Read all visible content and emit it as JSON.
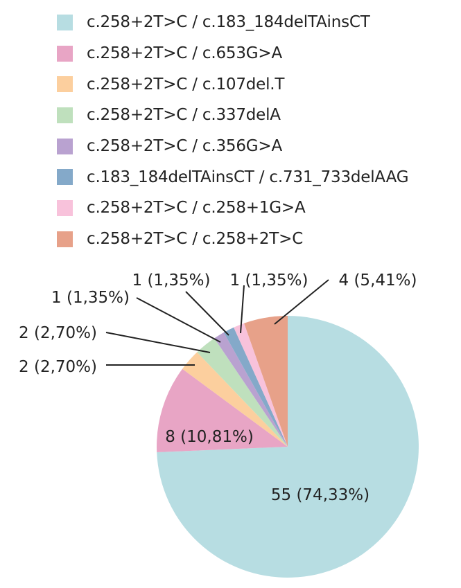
{
  "chart_data": {
    "type": "pie",
    "start_angle_deg": 0,
    "direction": "clockwise",
    "legend_position": "top",
    "slices": [
      {
        "legend": "c.258+2T>C / c.183_184delTAinsCT",
        "value": 55,
        "label": "55 (74,33%)",
        "color": "#b7dde2"
      },
      {
        "legend": "c.258+2T>C / c.653G>A",
        "value": 8,
        "label": "8 (10,81%)",
        "color": "#e8a5c5"
      },
      {
        "legend": "c.258+2T>C / c.107del.T",
        "value": 2,
        "label": "2 (2,70%)",
        "color": "#fccf9e"
      },
      {
        "legend": "c.258+2T>C / c.337delA",
        "value": 2,
        "label": "2 (2,70%)",
        "color": "#bfe0bd"
      },
      {
        "legend": "c.258+2T>C / c.356G>A",
        "value": 1,
        "label": "1 (1,35%)",
        "color": "#b9a2d0"
      },
      {
        "legend": "c.183_184delTAinsCT / c.731_733delAAG",
        "value": 1,
        "label": "1 (1,35%)",
        "color": "#84a9c9"
      },
      {
        "legend": "c.258+2T>C / c.258+1G>A",
        "value": 1,
        "label": "1 (1,35%)",
        "color": "#f8c2db"
      },
      {
        "legend": "c.258+2T>C / c.258+2T>C",
        "value": 4,
        "label": "4 (5,41%)",
        "color": "#e7a189"
      }
    ]
  }
}
